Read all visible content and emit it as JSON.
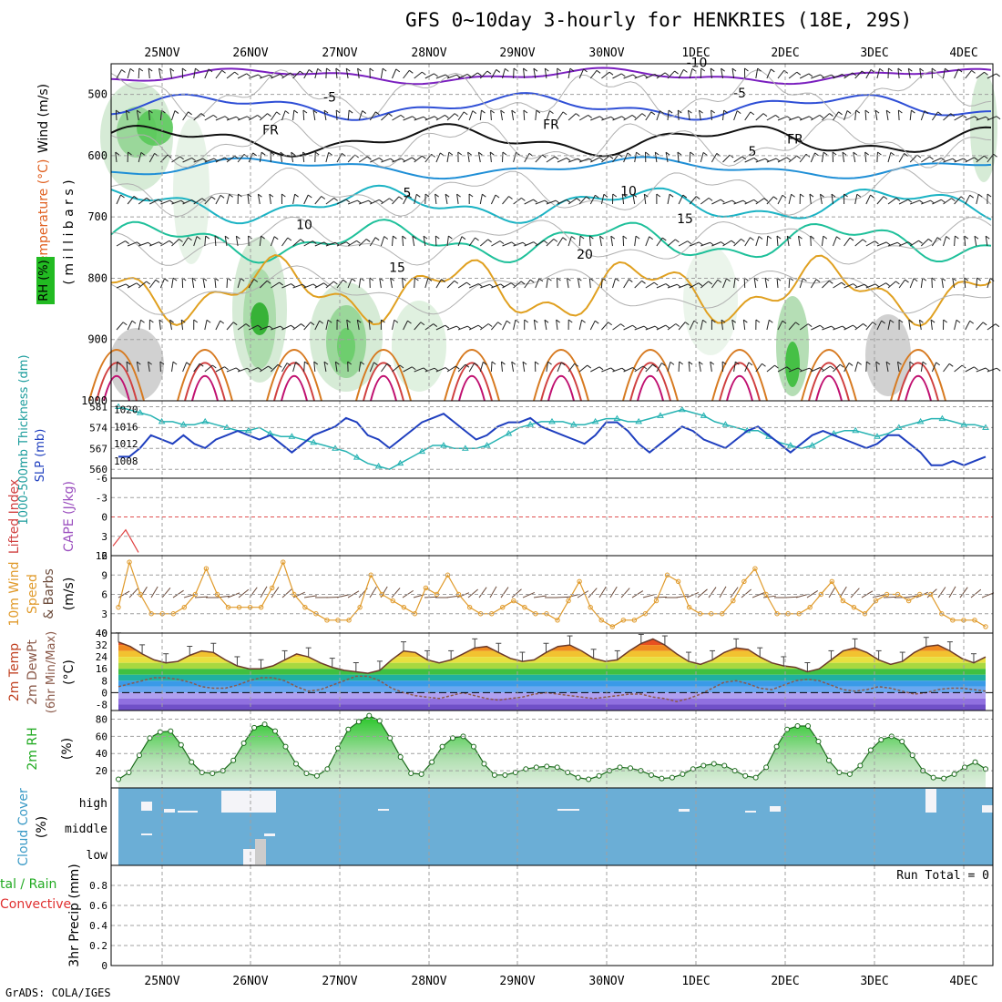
{
  "title": "GFS 0~10day 3-hourly for HENKRIES (18E, 29S)",
  "footer": "GrADS: COLA/IGES",
  "days": [
    "25NOV",
    "26NOV",
    "27NOV",
    "28NOV",
    "29NOV",
    "30NOV",
    "1DEC",
    "2DEC",
    "3DEC",
    "4DEC"
  ],
  "colors": {
    "grid": "#a0a0a0",
    "cloud": "#6baed6",
    "slp": "#1f3fbf",
    "thickness": "#27b3b3",
    "wind": "#e09a2a",
    "rh": "#22bb22"
  },
  "panels": {
    "upper": {
      "label_wind": "Wind (m/s)",
      "label_temp": "Temperature (°C)",
      "label_rh": "RH (%)",
      "label_mb": "( m i l l i b a r s )",
      "pressure_ticks": [
        "500",
        "600",
        "700",
        "800",
        "900",
        "1000"
      ]
    },
    "slp": {
      "label_thick": "1000-500mb Thickness (dm)",
      "label_slp": "SLP (mb)",
      "left_ticks": [
        "581",
        "574",
        "567",
        "560"
      ],
      "right_ticks": [
        "1020",
        "1016",
        "1012",
        "1008"
      ]
    },
    "li": {
      "label_li": "Lifted Index",
      "label_cape": "CAPE (J/kg)",
      "ticks": [
        "-6",
        "-3",
        "0",
        "3",
        "6"
      ]
    },
    "wind10": {
      "label_a": "10m Wind",
      "label_b": "Speed",
      "label_c": "& Barbs",
      "label_unit": "(m/s)",
      "ticks": [
        "12",
        "9",
        "6",
        "3",
        "0"
      ]
    },
    "temp2m": {
      "label_a": "2m Temp",
      "label_b": "2m DewPt",
      "label_c": "(6hr Min/Max)",
      "label_unit": "(°C)",
      "ticks": [
        "40",
        "32",
        "24",
        "16",
        "8",
        "0",
        "-8"
      ]
    },
    "rh2m": {
      "label_a": "2m RH",
      "label_unit": "(%)",
      "ticks": [
        "80",
        "60",
        "40",
        "20"
      ]
    },
    "cloud": {
      "label_a": "Cloud Cover",
      "label_unit": "(%)",
      "levels": [
        "high",
        "middle",
        "low"
      ]
    },
    "precip": {
      "label_a": "tal / Rain",
      "label_b": "Convective",
      "label_c": "3hr Precip (mm)",
      "run_total": "Run Total = 0",
      "ticks": [
        "0.8",
        "0.6",
        "0.4",
        "0.2",
        "0"
      ]
    }
  },
  "chart_data": [
    {
      "type": "line",
      "title": "1000-500mb Thickness (dm) / SLP (mb)",
      "x_unit": "3-hourly steps from 24NOV 12Z",
      "series": [
        {
          "name": "SLP (mb)",
          "axis": "right",
          "ylim": [
            1004,
            1022
          ],
          "values": [
            1009,
            1009,
            1011,
            1014,
            1013,
            1012,
            1014,
            1012,
            1011,
            1013,
            1014,
            1015,
            1014,
            1013,
            1014,
            1012,
            1010,
            1012,
            1014,
            1015,
            1016,
            1018,
            1017,
            1014,
            1013,
            1011,
            1013,
            1015,
            1017,
            1018,
            1019,
            1017,
            1015,
            1013,
            1014,
            1016,
            1017,
            1017,
            1018,
            1016,
            1015,
            1014,
            1013,
            1012,
            1014,
            1017,
            1017,
            1015,
            1012,
            1010,
            1012,
            1014,
            1016,
            1015,
            1013,
            1012,
            1011,
            1013,
            1015,
            1016,
            1014,
            1012,
            1010,
            1012,
            1014,
            1015,
            1014,
            1013,
            1012,
            1011,
            1012,
            1014,
            1014,
            1012,
            1010,
            1007,
            1007,
            1008,
            1007,
            1008,
            1009
          ]
        },
        {
          "name": "1000-500mb Thickness (dm)",
          "axis": "left",
          "ylim": [
            557,
            583
          ],
          "values": [
            581,
            580,
            579,
            578,
            576,
            576,
            575,
            575,
            576,
            575,
            574,
            573,
            573,
            574,
            572,
            571,
            571,
            570,
            569,
            568,
            567,
            566,
            564,
            562,
            561,
            560,
            562,
            564,
            566,
            568,
            568,
            567,
            567,
            567,
            568,
            570,
            572,
            574,
            575,
            576,
            576,
            576,
            575,
            575,
            576,
            577,
            577,
            576,
            576,
            577,
            578,
            579,
            580,
            579,
            578,
            576,
            575,
            574,
            573,
            573,
            571,
            569,
            568,
            567,
            568,
            570,
            572,
            573,
            573,
            572,
            571,
            572,
            574,
            575,
            576,
            577,
            577,
            576,
            575,
            575,
            574
          ]
        }
      ]
    },
    {
      "type": "line",
      "title": "10m Wind Speed & Barbs (m/s)",
      "ylim": [
        0,
        12
      ],
      "series": [
        {
          "name": "10m Wind Speed",
          "values": [
            4,
            11,
            6,
            3,
            3,
            3,
            4,
            6,
            10,
            6,
            4,
            4,
            4,
            4,
            7,
            11,
            6,
            4,
            3,
            2,
            2,
            2,
            4,
            9,
            6,
            5,
            4,
            3,
            7,
            6,
            9,
            6,
            4,
            3,
            3,
            4,
            5,
            4,
            3,
            3,
            2,
            5,
            8,
            4,
            2,
            1,
            2,
            2,
            3,
            5,
            9,
            8,
            4,
            3,
            3,
            3,
            5,
            8,
            10,
            6,
            3,
            3,
            3,
            4,
            6,
            8,
            5,
            4,
            3,
            5,
            6,
            6,
            5,
            6,
            6,
            3,
            2,
            2,
            2,
            1
          ]
        }
      ]
    },
    {
      "type": "area",
      "title": "2m Temp / 2m DewPt (°C)",
      "ylim": [
        -12,
        40
      ],
      "series": [
        {
          "name": "2m Temp",
          "values": [
            34,
            31,
            26,
            22,
            20,
            21,
            25,
            28,
            27,
            22,
            18,
            16,
            16,
            18,
            22,
            26,
            24,
            20,
            17,
            15,
            14,
            13,
            15,
            22,
            28,
            27,
            22,
            20,
            22,
            26,
            30,
            31,
            27,
            23,
            21,
            22,
            27,
            31,
            32,
            28,
            23,
            21,
            22,
            28,
            33,
            36,
            32,
            26,
            21,
            19,
            22,
            27,
            30,
            29,
            24,
            20,
            18,
            17,
            14,
            16,
            22,
            28,
            30,
            27,
            22,
            19,
            21,
            27,
            31,
            32,
            28,
            23,
            20,
            24
          ]
        },
        {
          "name": "2m DewPt",
          "values": [
            4,
            6,
            8,
            10,
            10,
            9,
            7,
            4,
            3,
            3,
            5,
            8,
            10,
            10,
            8,
            4,
            1,
            2,
            5,
            8,
            11,
            11,
            8,
            3,
            0,
            -2,
            -3,
            -4,
            -2,
            0,
            -2,
            -4,
            -5,
            -4,
            -3,
            -1,
            0,
            -1,
            -2,
            -3,
            -4,
            -3,
            -2,
            -1,
            -1,
            -3,
            -4,
            -6,
            -4,
            -1,
            3,
            7,
            8,
            6,
            3,
            2,
            5,
            8,
            9,
            8,
            5,
            2,
            1,
            2,
            4,
            3,
            1,
            -1,
            0,
            2,
            3,
            3,
            2,
            1
          ]
        }
      ]
    },
    {
      "type": "area",
      "title": "2m RH (%)",
      "ylim": [
        0,
        90
      ],
      "series": [
        {
          "name": "2m RH",
          "values": [
            10,
            18,
            38,
            58,
            65,
            66,
            50,
            30,
            18,
            17,
            20,
            32,
            52,
            70,
            74,
            66,
            48,
            28,
            17,
            14,
            22,
            46,
            68,
            77,
            84,
            78,
            58,
            36,
            17,
            16,
            30,
            48,
            58,
            60,
            48,
            28,
            15,
            15,
            18,
            22,
            24,
            25,
            24,
            18,
            12,
            10,
            14,
            20,
            24,
            23,
            20,
            15,
            11,
            12,
            16,
            22,
            26,
            28,
            26,
            20,
            14,
            12,
            24,
            48,
            68,
            72,
            72,
            54,
            32,
            18,
            16,
            26,
            44,
            56,
            60,
            54,
            38,
            20,
            12,
            11,
            16,
            24,
            30,
            22
          ]
        }
      ]
    },
    {
      "type": "line",
      "title": "Lifted Index / CAPE (J/kg)",
      "ylim": [
        6,
        -6
      ],
      "series": [
        {
          "name": "Lifted Index",
          "values": [
            4.5,
            2.0,
            5.5
          ]
        }
      ]
    },
    {
      "type": "bar",
      "title": "3hr Precip (mm)",
      "ylim": [
        0,
        1
      ],
      "run_total": 0,
      "values": []
    }
  ]
}
